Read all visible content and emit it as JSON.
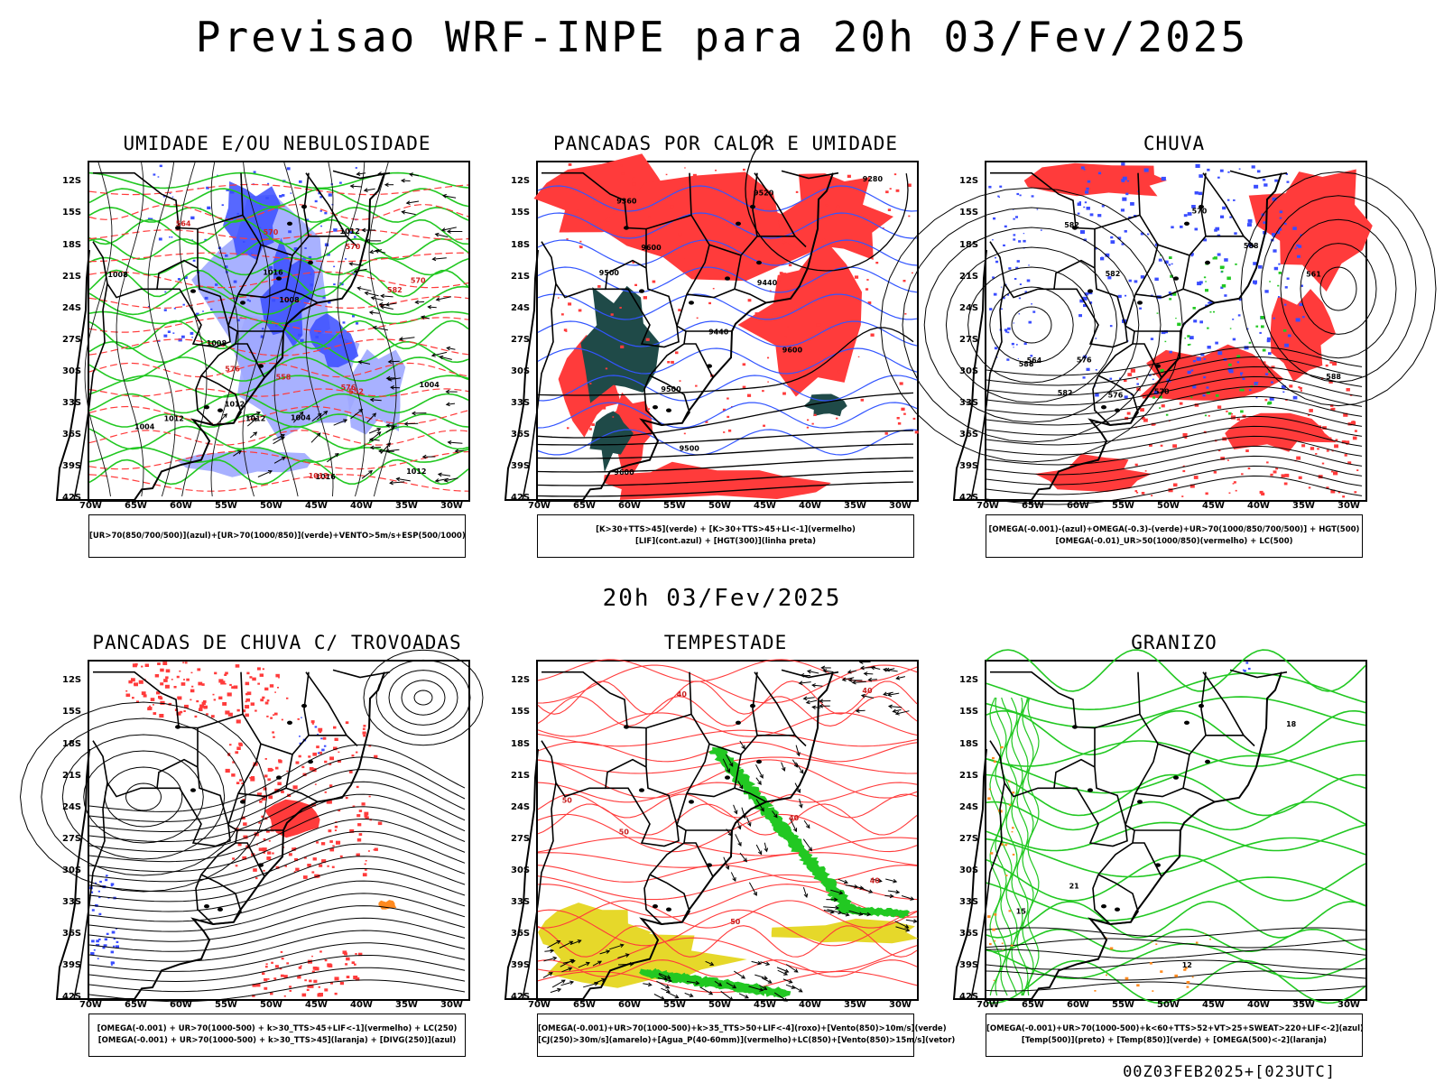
{
  "header": {
    "title": "Previsao WRF-INPE  para 20h 03/Fev/2025",
    "mid_time": "20h 03/Fev/2025",
    "footer_stamp": "00Z03FEB2025+[023UTC]"
  },
  "axes": {
    "lat_ticks": [
      "12S",
      "15S",
      "18S",
      "21S",
      "24S",
      "27S",
      "30S",
      "33S",
      "36S",
      "39S",
      "42S"
    ],
    "lon_ticks": [
      "70W",
      "65W",
      "60W",
      "55W",
      "50W",
      "45W",
      "40W",
      "35W",
      "30W"
    ]
  },
  "colors": {
    "blue": "#3a4dff",
    "light_blue": "#9ea8ff",
    "green": "#22c822",
    "red": "#ff3b3b",
    "dark_teal": "#1f4a48",
    "yellow": "#e6d82a",
    "orange": "#ff8a1f"
  },
  "chart_data": [
    {
      "type": "heatmap",
      "title": "UMIDADE E/OU NEBULOSIDADE",
      "legend": [
        "[UR>70(850/700/500)](azul)+[UR>70(1000/850)](verde)+VENTO>5m/s+ESP(500/1000)"
      ],
      "contour_labels": [
        "1012",
        "1012",
        "1012",
        "1008",
        "1004",
        "1012",
        "1012",
        "1016",
        "1016",
        "1008",
        "1004",
        "1004",
        "1008",
        "1012",
        "576",
        "576",
        "570",
        "582",
        "570",
        "564",
        "570",
        "558",
        "552"
      ]
    },
    {
      "type": "heatmap",
      "title": "PANCADAS POR CALOR E UMIDADE",
      "legend": [
        "[K>30+TTS>45](verde) + [K>30+TTS>45+LI<-1](vermelho)",
        "[LIF](cont.azul) + [HGT(300)](linha preta)"
      ],
      "contour_labels": [
        "9600",
        "9600",
        "9500",
        "9500",
        "9600",
        "9500",
        "9440",
        "9520",
        "9440",
        "9360",
        "9280"
      ]
    },
    {
      "type": "heatmap",
      "title": "CHUVA",
      "legend": [
        "[OMEGA(-0.001)-(azul)+OMEGA(-0.3)-(verde)+UR>70(1000/850/700/500)] + HGT(500)",
        "[OMEGA(-0.01)_UR>50(1000/850)(vermelho) + LC(500)"
      ],
      "contour_labels": [
        "582",
        "582",
        "588",
        "588",
        "582",
        "576",
        "576",
        "570",
        "570",
        "564",
        "561",
        "588"
      ]
    },
    {
      "type": "heatmap",
      "title": "PANCADAS DE CHUVA C/ TROVOADAS",
      "legend": [
        "[OMEGA(-0.001) + UR>70(1000-500) + k>30_TTS>45+LIF<-1](vermelho) + LC(250)",
        "[OMEGA(-0.001) + UR>70(1000-500) + k>30_TTS>45](laranja) + [DIVG(250)](azul)"
      ],
      "contour_labels": []
    },
    {
      "type": "heatmap",
      "title": "TEMPESTADE",
      "legend": [
        "[OMEGA(-0.001)+UR>70(1000-500)+k>35_TTS>50+LIF<-4](roxo)+[Vento(850)>10m/s](verde)",
        "[CJ(250)>30m/s](amarelo)+[Agua_P(40-60mm)](vermelho)+LC(850)+[Vento(850)>15m/s](vetor)"
      ],
      "contour_labels": [
        "50",
        "40",
        "40",
        "40",
        "50",
        "50",
        "40"
      ]
    },
    {
      "type": "heatmap",
      "title": "GRANIZO",
      "legend": [
        "[OMEGA(-0.001)+UR>70(1000-500)+k<60+TTS>52+VT>25+SWEAT>220+LIF<-2](azul)",
        "[Temp(500)](preto) + [Temp(850)](verde) + [OMEGA(500)<-2](laranja)"
      ],
      "contour_labels": [
        "21",
        "18",
        "15",
        "12"
      ]
    }
  ]
}
